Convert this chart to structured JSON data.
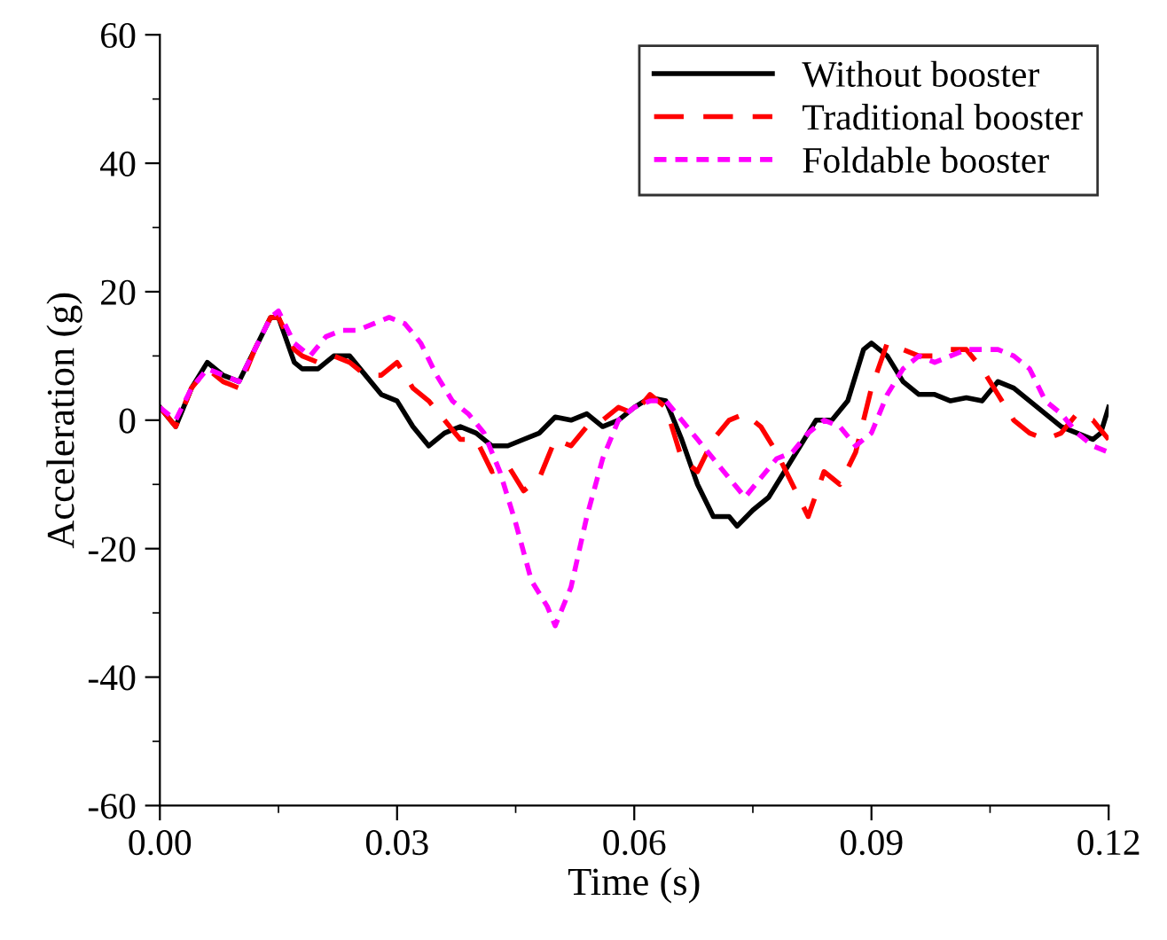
{
  "chart_data": {
    "type": "line",
    "xlabel": "Time (s)",
    "ylabel": "Acceleration (g)",
    "xlim": [
      0,
      0.12
    ],
    "xticks": [
      {
        "value": 0,
        "label": "0.00"
      },
      0.03,
      0.06,
      0.09,
      0.12
    ],
    "ylim": [
      -60,
      60
    ],
    "yticks": [
      -60,
      -40,
      -20,
      0,
      20,
      40,
      60
    ],
    "grid": false,
    "legend": "top right",
    "marker": "none",
    "series": [
      {
        "name": "Without booster",
        "color": "#000000",
        "line_style": "solid",
        "x": [
          0,
          0.002,
          0.004,
          0.006,
          0.008,
          0.01,
          0.012,
          0.014,
          0.015,
          0.017,
          0.018,
          0.02,
          0.022,
          0.024,
          0.026,
          0.028,
          0.03,
          0.032,
          0.034,
          0.036,
          0.038,
          0.04,
          0.042,
          0.044,
          0.046,
          0.048,
          0.05,
          0.052,
          0.054,
          0.056,
          0.058,
          0.06,
          0.062,
          0.064,
          0.066,
          0.068,
          0.07,
          0.072,
          0.073,
          0.075,
          0.077,
          0.079,
          0.081,
          0.083,
          0.085,
          0.087,
          0.089,
          0.09,
          0.092,
          0.094,
          0.096,
          0.098,
          0.1,
          0.102,
          0.104,
          0.106,
          0.108,
          0.11,
          0.112,
          0.114,
          0.116,
          0.118,
          0.119,
          0.12
        ],
        "values": [
          2,
          -1,
          5,
          9,
          7,
          6,
          11,
          16,
          16,
          9,
          8,
          8,
          10,
          10,
          7,
          4,
          3,
          -1,
          -4,
          -2,
          -1,
          -2,
          -4,
          -4,
          -3,
          -2,
          0.5,
          0,
          1,
          -1,
          0,
          2,
          3.5,
          3,
          -3,
          -10,
          -15,
          -15,
          -16.5,
          -14,
          -12,
          -8,
          -4,
          0,
          0,
          3,
          11,
          12,
          10,
          6,
          4,
          4,
          3,
          3.5,
          3,
          6,
          5,
          3,
          1,
          -1,
          -2,
          -3,
          -2,
          2
        ]
      },
      {
        "name": "Traditional booster",
        "color": "#ff0000",
        "line_style": "dashed",
        "x": [
          0,
          0.002,
          0.004,
          0.006,
          0.008,
          0.01,
          0.012,
          0.014,
          0.015,
          0.017,
          0.018,
          0.02,
          0.022,
          0.024,
          0.026,
          0.028,
          0.03,
          0.032,
          0.034,
          0.036,
          0.038,
          0.04,
          0.042,
          0.044,
          0.046,
          0.048,
          0.05,
          0.052,
          0.054,
          0.056,
          0.058,
          0.06,
          0.062,
          0.064,
          0.066,
          0.068,
          0.07,
          0.072,
          0.074,
          0.076,
          0.078,
          0.08,
          0.082,
          0.084,
          0.086,
          0.088,
          0.09,
          0.092,
          0.094,
          0.096,
          0.098,
          0.1,
          0.102,
          0.104,
          0.106,
          0.108,
          0.11,
          0.112,
          0.114,
          0.116,
          0.118,
          0.12
        ],
        "values": [
          2,
          -1,
          5,
          8,
          6,
          5,
          11,
          16,
          16,
          11,
          10,
          9,
          10,
          9,
          7,
          7,
          9,
          5,
          3,
          0,
          -3,
          -3,
          -8,
          -7,
          -11,
          -9,
          -3,
          -4,
          -1,
          0,
          2,
          1,
          4,
          2,
          -6,
          -8,
          -3,
          0,
          1,
          -1,
          -5,
          -10,
          -15,
          -8,
          -10,
          -5,
          5,
          12,
          11,
          10,
          10,
          11,
          11,
          8,
          4,
          0,
          -2,
          -3,
          -2,
          1,
          0,
          -3
        ]
      },
      {
        "name": "Foldable booster",
        "color": "#ff00ff",
        "line_style": "dotted",
        "x": [
          0,
          0.002,
          0.004,
          0.006,
          0.008,
          0.01,
          0.012,
          0.014,
          0.015,
          0.017,
          0.019,
          0.021,
          0.023,
          0.025,
          0.027,
          0.029,
          0.031,
          0.033,
          0.035,
          0.037,
          0.039,
          0.041,
          0.043,
          0.045,
          0.047,
          0.049,
          0.05,
          0.052,
          0.054,
          0.056,
          0.058,
          0.06,
          0.062,
          0.064,
          0.066,
          0.068,
          0.07,
          0.072,
          0.074,
          0.076,
          0.078,
          0.08,
          0.082,
          0.084,
          0.086,
          0.088,
          0.09,
          0.092,
          0.094,
          0.096,
          0.098,
          0.1,
          0.102,
          0.104,
          0.106,
          0.108,
          0.11,
          0.112,
          0.114,
          0.116,
          0.118,
          0.12
        ],
        "values": [
          2,
          0,
          5,
          8,
          7,
          6,
          11,
          16,
          17,
          12,
          10,
          13,
          14,
          14,
          15,
          16,
          15,
          12,
          7,
          3,
          1,
          -2,
          -8,
          -16,
          -25,
          -29,
          -32,
          -26,
          -15,
          -6,
          0,
          2,
          3,
          3,
          0,
          -3,
          -6,
          -9,
          -12,
          -9,
          -6,
          -5,
          -2,
          0,
          -1,
          -4,
          -2,
          4,
          8,
          10,
          9,
          10,
          11,
          11,
          11,
          10,
          8,
          3,
          1,
          -2,
          -4,
          -5
        ]
      }
    ]
  }
}
